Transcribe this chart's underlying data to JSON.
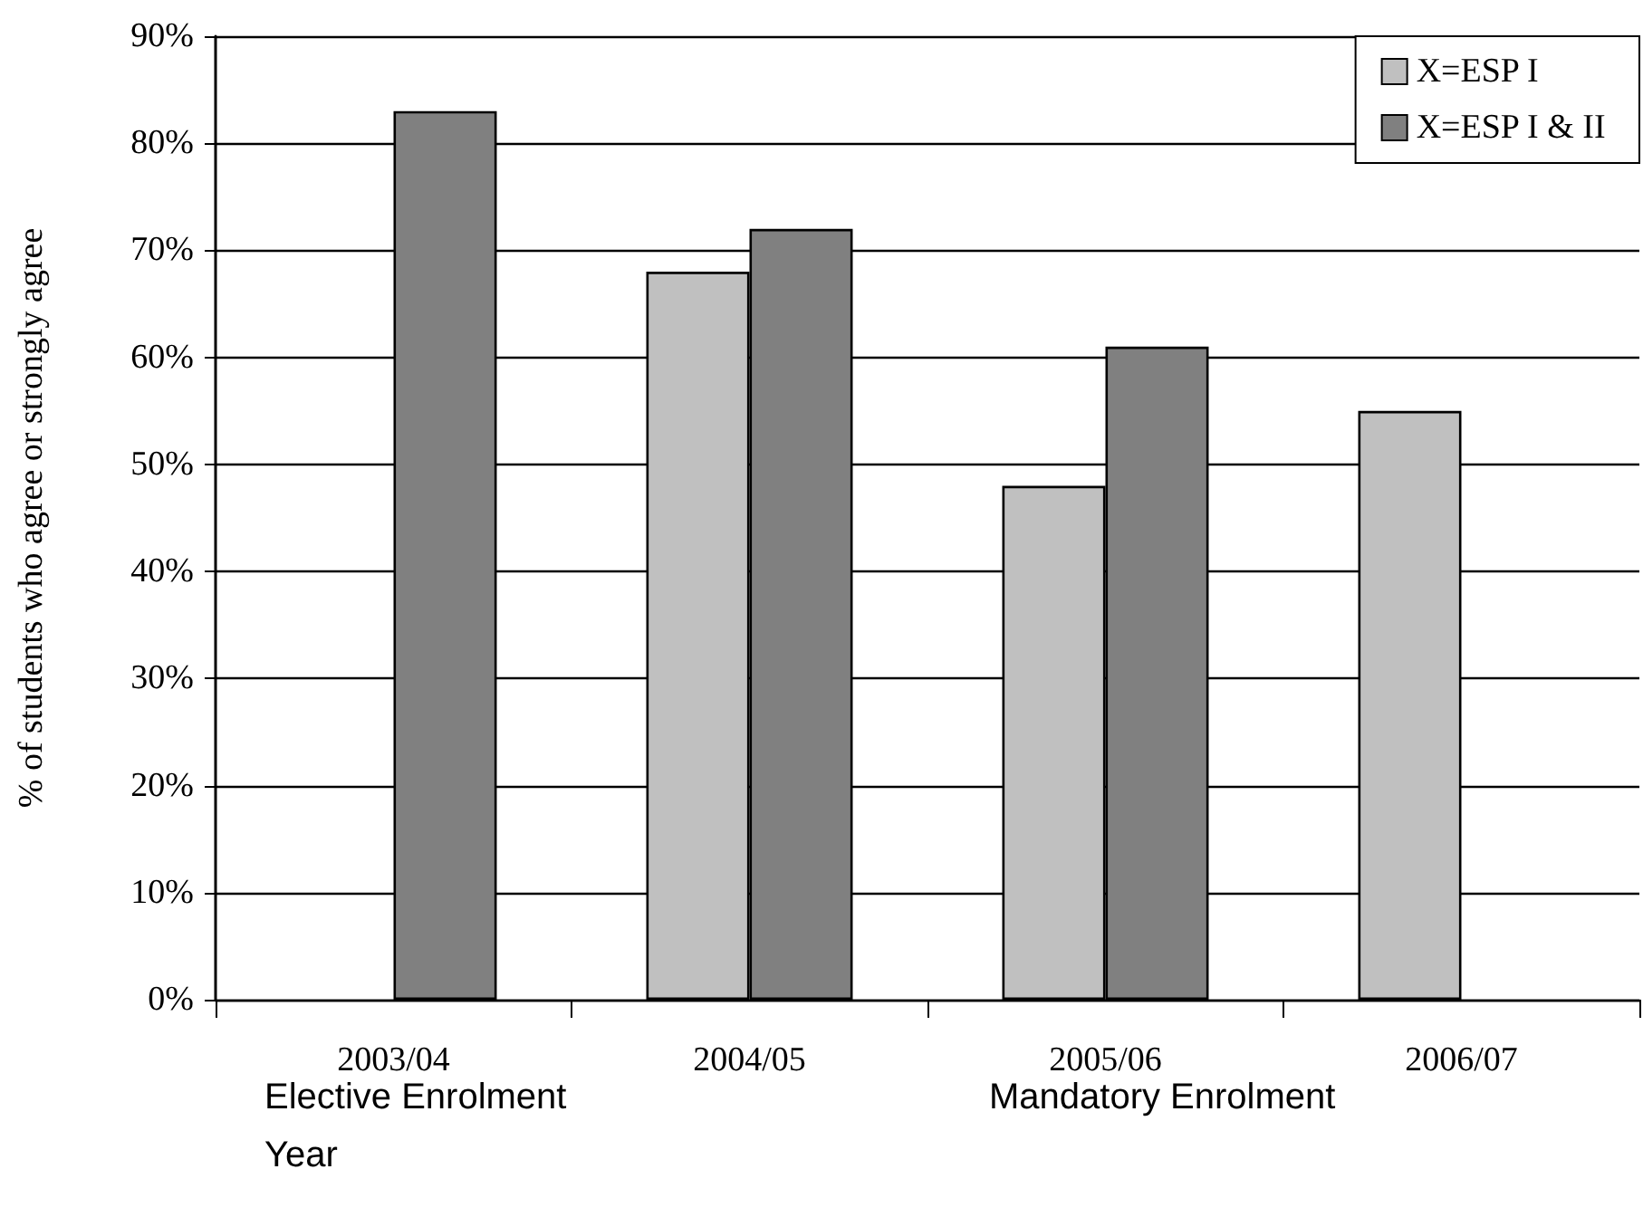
{
  "chart_data": {
    "type": "bar",
    "ylabel": "% of students who agree or strongly agree",
    "xlabel": "Year",
    "categories": [
      "2003/04",
      "2004/05",
      "2005/06",
      "2006/07"
    ],
    "series": [
      {
        "name": "X=ESP I",
        "color": "#c0c0c0",
        "values": [
          null,
          68,
          48,
          55
        ]
      },
      {
        "name": "X=ESP I & II",
        "color": "#808080",
        "values": [
          83,
          72,
          61,
          null
        ]
      }
    ],
    "ylim": [
      0,
      90
    ],
    "yticks": [
      {
        "value": 0,
        "label": "0%"
      },
      {
        "value": 10,
        "label": "10%"
      },
      {
        "value": 20,
        "label": "20%"
      },
      {
        "value": 30,
        "label": "30%"
      },
      {
        "value": 40,
        "label": "40%"
      },
      {
        "value": 50,
        "label": "50%"
      },
      {
        "value": 60,
        "label": "60%"
      },
      {
        "value": 70,
        "label": "70%"
      },
      {
        "value": 80,
        "label": "80%"
      },
      {
        "value": 90,
        "label": "90%"
      }
    ],
    "grid": "y",
    "legend": "top right",
    "annotations": [
      "Elective Enrolment",
      "Mandatory Enrolment"
    ]
  }
}
